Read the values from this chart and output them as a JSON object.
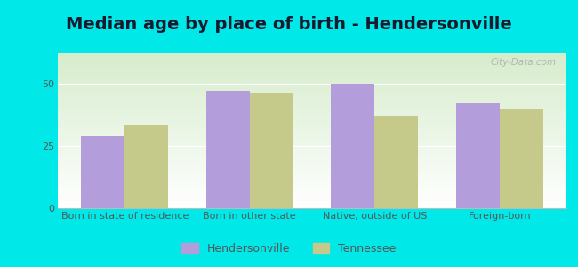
{
  "title": "Median age by place of birth - Hendersonville",
  "categories": [
    "Born in state of residence",
    "Born in other state",
    "Native, outside of US",
    "Foreign-born"
  ],
  "hendersonville_values": [
    29,
    47,
    50,
    42
  ],
  "tennessee_values": [
    33,
    46,
    37,
    40
  ],
  "hendersonville_color": "#b39ddb",
  "tennessee_color": "#c5c98a",
  "background_outer": "#00e8e8",
  "gradient_top": "#d6eccc",
  "gradient_bottom": "#ffffff",
  "ylim": [
    0,
    62
  ],
  "yticks": [
    0,
    25,
    50
  ],
  "bar_width": 0.35,
  "legend_labels": [
    "Hendersonville",
    "Tennessee"
  ],
  "title_fontsize": 14,
  "tick_fontsize": 8,
  "legend_fontsize": 9,
  "watermark": "City-Data.com"
}
